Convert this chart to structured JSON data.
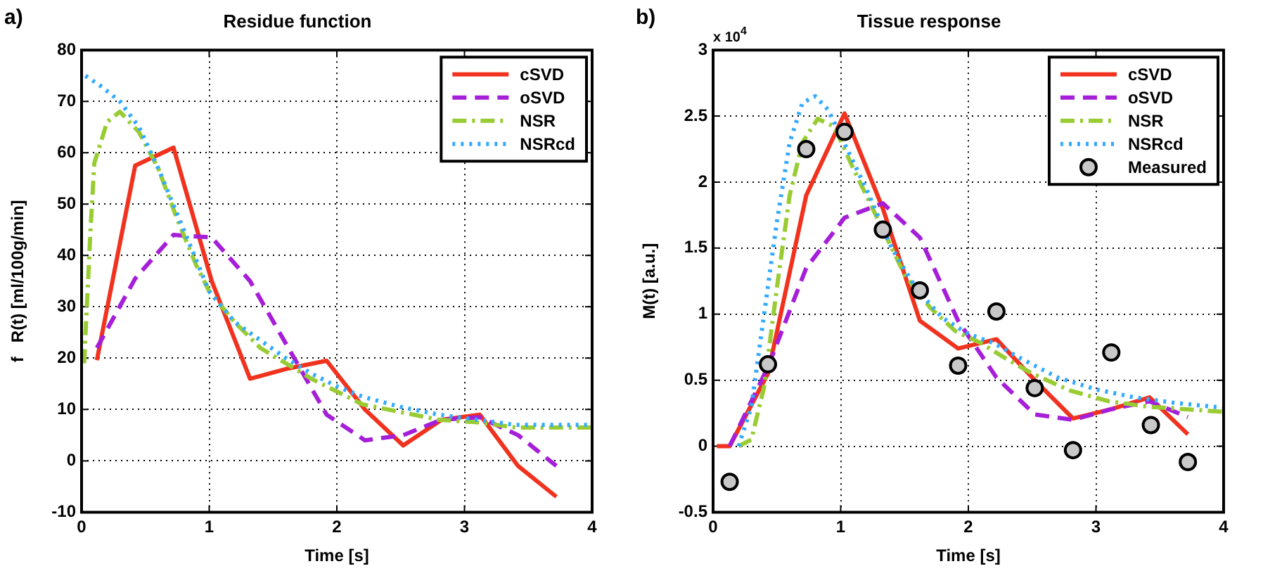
{
  "chart_data": [
    {
      "type": "line",
      "title": "Residue function",
      "xlabel": "Time [s]",
      "ylabel": "f   R(t) [ml/100g/min]",
      "annotations": [
        "a)"
      ],
      "xlim": [
        0,
        4
      ],
      "xticks": [
        0,
        1,
        2,
        3,
        4
      ],
      "ylim": [
        -10,
        80
      ],
      "yticks": [
        -10,
        0,
        10,
        20,
        30,
        40,
        50,
        60,
        70,
        80
      ],
      "grid": true,
      "legend": "top right",
      "series": [
        {
          "name": "cSVD",
          "color": "#f0321e",
          "line_style": "solid",
          "x": [
            0.12,
            0.42,
            0.72,
            1.02,
            1.32,
            1.62,
            1.92,
            2.22,
            2.52,
            2.82,
            3.12,
            3.42,
            3.72
          ],
          "values": [
            19.6,
            57.5,
            61,
            35,
            16,
            18,
            19.5,
            10,
            3,
            8,
            9,
            -1,
            -7
          ]
        },
        {
          "name": "oSVD",
          "color": "#a51ed8",
          "line_style": "dashed",
          "x": [
            0.12,
            0.42,
            0.72,
            1.02,
            1.32,
            1.62,
            1.92,
            2.22,
            2.52,
            2.82,
            3.12,
            3.42,
            3.72
          ],
          "values": [
            22,
            35.5,
            44,
            43.5,
            35,
            22,
            9,
            4,
            5,
            8,
            8.5,
            5,
            -1
          ]
        },
        {
          "name": "NSR",
          "color": "#99cc33",
          "line_style": "dashdot",
          "x": [
            0.02,
            0.07,
            0.1,
            0.2,
            0.3,
            0.45,
            0.6,
            0.75,
            0.9,
            1.0,
            1.2,
            1.4,
            1.6,
            1.8,
            2.0,
            2.2,
            2.5,
            2.8,
            3.1,
            3.4,
            4.0
          ],
          "values": [
            19,
            45,
            58,
            66,
            68,
            64,
            57,
            47,
            38,
            33,
            27,
            22,
            19,
            16,
            13.5,
            11,
            9.5,
            8,
            7.5,
            6.5,
            6.5
          ]
        },
        {
          "name": "NSRcd",
          "color": "#33aaff",
          "line_style": "dotted",
          "x": [
            0.03,
            0.15,
            0.3,
            0.45,
            0.6,
            0.75,
            0.9,
            1.0,
            1.2,
            1.4,
            1.6,
            1.8,
            2.0,
            2.2,
            2.5,
            2.8,
            3.1,
            3.4,
            4.0
          ],
          "values": [
            75,
            73,
            70,
            65,
            57,
            48,
            39,
            33,
            27,
            23.5,
            20,
            17,
            14.5,
            12.5,
            10.5,
            9,
            8,
            7,
            7
          ]
        }
      ]
    },
    {
      "type": "line",
      "title": "Tissue response",
      "xlabel": "Time [s]",
      "ylabel": "M(t) [a.u.]",
      "annotations": [
        "b)",
        "x 10$^{4}$"
      ],
      "xlim": [
        0,
        4
      ],
      "xticks": [
        0,
        1,
        2,
        3,
        4
      ],
      "ylim": [
        -0.5,
        3
      ],
      "yticks": [
        -0.5,
        0,
        0.5,
        1,
        1.5,
        2,
        2.5,
        3
      ],
      "grid": true,
      "legend": "top right",
      "series": [
        {
          "name": "cSVD",
          "color": "#f0321e",
          "line_style": "solid",
          "x": [
            0.03,
            0.13,
            0.43,
            0.73,
            1.03,
            1.33,
            1.62,
            1.92,
            2.22,
            2.52,
            2.82,
            3.12,
            3.42,
            3.72
          ],
          "values": [
            0,
            0,
            0.55,
            1.9,
            2.52,
            1.8,
            0.95,
            0.74,
            0.81,
            0.5,
            0.21,
            0.28,
            0.37,
            0.09
          ]
        },
        {
          "name": "oSVD",
          "color": "#a51ed8",
          "line_style": "dashed",
          "x": [
            0.13,
            0.43,
            0.73,
            1.03,
            1.33,
            1.62,
            1.92,
            2.22,
            2.52,
            2.82,
            3.12,
            3.42,
            3.72
          ],
          "values": [
            0,
            0.6,
            1.35,
            1.73,
            1.84,
            1.58,
            0.95,
            0.52,
            0.24,
            0.2,
            0.28,
            0.34,
            0.22
          ]
        },
        {
          "name": "NSR",
          "color": "#99cc33",
          "line_style": "dashdot",
          "x": [
            0.2,
            0.3,
            0.4,
            0.5,
            0.6,
            0.7,
            0.82,
            0.95,
            1.1,
            1.3,
            1.5,
            1.7,
            1.9,
            2.1,
            2.3,
            2.5,
            2.8,
            3.1,
            3.4,
            4.0
          ],
          "values": [
            0,
            0.05,
            0.45,
            1.2,
            1.9,
            2.3,
            2.48,
            2.42,
            2.1,
            1.7,
            1.3,
            1.05,
            0.87,
            0.78,
            0.66,
            0.55,
            0.42,
            0.34,
            0.3,
            0.26
          ]
        },
        {
          "name": "NSRcd",
          "color": "#33aaff",
          "line_style": "dotted",
          "x": [
            0.2,
            0.3,
            0.4,
            0.5,
            0.6,
            0.7,
            0.8,
            0.9,
            1.0,
            1.2,
            1.4,
            1.6,
            1.8,
            2.0,
            2.2,
            2.4,
            2.7,
            3.0,
            3.3,
            3.6,
            4.0
          ],
          "values": [
            0,
            0.3,
            1.0,
            1.7,
            2.3,
            2.6,
            2.65,
            2.55,
            2.35,
            1.95,
            1.5,
            1.18,
            0.97,
            0.85,
            0.78,
            0.67,
            0.52,
            0.43,
            0.37,
            0.33,
            0.29
          ]
        },
        {
          "name": "Measured",
          "type": "scatter",
          "marker": "circle",
          "color": "#c8c8c8",
          "x": [
            0.13,
            0.43,
            0.73,
            1.03,
            1.33,
            1.62,
            1.92,
            2.22,
            2.52,
            2.82,
            3.12,
            3.43,
            3.72
          ],
          "values": [
            -0.27,
            0.62,
            2.25,
            2.38,
            1.64,
            1.18,
            0.61,
            1.02,
            0.44,
            -0.03,
            0.71,
            0.16,
            -0.12
          ]
        }
      ]
    }
  ]
}
